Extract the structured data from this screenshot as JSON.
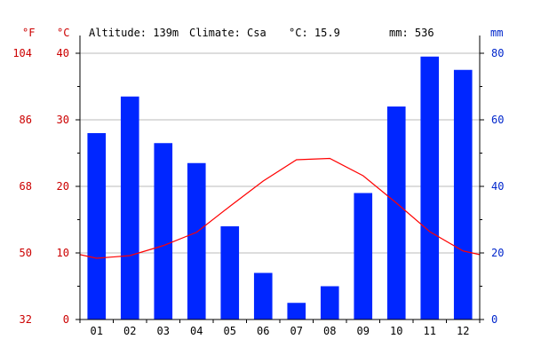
{
  "chart_data": {
    "type": "bar+line",
    "header": {
      "altitude": "Altitude: 139m",
      "climate": "Climate: Csa",
      "mean_temp": "°C: 15.9",
      "total_precip": "mm: 536"
    },
    "units": {
      "fahrenheit": "°F",
      "celsius": "°C",
      "precip": "mm"
    },
    "categories": [
      "01",
      "02",
      "03",
      "04",
      "05",
      "06",
      "07",
      "08",
      "09",
      "10",
      "11",
      "12"
    ],
    "series": [
      {
        "kind": "bar",
        "axis": "right",
        "values": [
          56,
          67,
          53,
          47,
          28,
          14,
          5,
          10,
          38,
          64,
          79,
          75
        ]
      },
      {
        "kind": "line",
        "axis": "left",
        "values": [
          9.2,
          9.6,
          11.1,
          13.1,
          17.0,
          20.8,
          24.0,
          24.2,
          21.6,
          17.5,
          13.2,
          10.3
        ]
      }
    ],
    "temp_axis": {
      "ylim": [
        0,
        40
      ],
      "ticks": [
        "0",
        "10",
        "20",
        "30",
        "40"
      ]
    },
    "fahrenheit_axis": {
      "ticks": [
        "32",
        "50",
        "68",
        "86",
        "104"
      ]
    },
    "precip_axis": {
      "ylim": [
        0,
        80
      ],
      "ticks": [
        "0",
        "20",
        "40",
        "60",
        "80"
      ]
    },
    "grid": true,
    "colors": {
      "bars": "#0026ff",
      "temp_line": "#ff0000",
      "temp_axis_text": "#cc0000",
      "precip_axis_text": "#0026cc",
      "gridlines": "#bbbbbb",
      "axis": "#000000"
    }
  }
}
